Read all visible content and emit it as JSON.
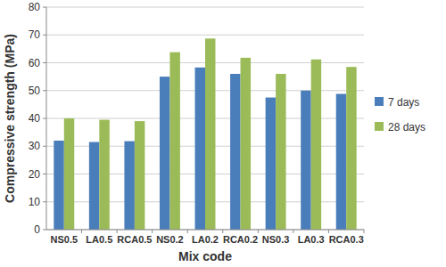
{
  "chart_data": {
    "type": "bar",
    "x_label": "Mix code",
    "y_label": "Compressive strength (MPa)",
    "categories": [
      "NS0.5",
      "LA0.5",
      "RCA0.5",
      "NS0.2",
      "LA0.2",
      "RCA0.2",
      "NS0.3",
      "LA0.3",
      "RCA0.3"
    ],
    "series": [
      {
        "name": "7 days",
        "color": "#4a7ebb",
        "values": [
          32,
          31.5,
          31.8,
          55,
          58.3,
          56,
          47.5,
          50,
          48.8
        ]
      },
      {
        "name": "28 days",
        "color": "#9bbb59",
        "values": [
          40,
          39.5,
          39,
          63.8,
          68.7,
          61.8,
          56,
          61.2,
          58.5
        ]
      }
    ],
    "ylim": [
      0,
      80
    ],
    "yticks": [
      0,
      10,
      20,
      30,
      40,
      50,
      60,
      70,
      80
    ],
    "grid": true,
    "legend": "right"
  }
}
